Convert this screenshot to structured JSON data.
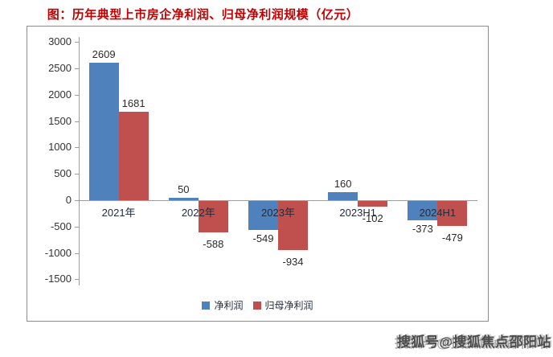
{
  "title": "图：历年典型上市房企净利润、归母净利润规模（亿元）",
  "watermark": "搜狐号@搜狐焦点邵阳站",
  "colors": {
    "title": "#c00000",
    "bar_blue": "#4f81bd",
    "bar_red": "#c0504d",
    "axis": "#9e9e9e",
    "text": "#2b2b2b",
    "border": "#8c8c8c",
    "watermark": "#4d4d4d"
  },
  "chart_data": {
    "type": "bar",
    "categories": [
      "2021年",
      "2022年",
      "2023年",
      "2023H1",
      "2024H1"
    ],
    "series": [
      {
        "name": "净利润",
        "color": "#4f81bd",
        "values": [
          2609,
          50,
          -549,
          160,
          -373
        ]
      },
      {
        "name": "归母净利润",
        "color": "#c0504d",
        "values": [
          1681,
          -588,
          -934,
          -102,
          -479
        ]
      }
    ],
    "data_labels": [
      [
        "2609",
        "50",
        "-549",
        "160",
        "-373"
      ],
      [
        "1681",
        "-588",
        "-934",
        "-102",
        "-479"
      ]
    ],
    "title": "图：历年典型上市房企净利润、归母净利润规模（亿元）",
    "xlabel": "",
    "ylabel": "",
    "ylim": [
      -1500,
      3000
    ],
    "ytick_step": 500,
    "yticks": [
      "3000",
      "2500",
      "2000",
      "1500",
      "1000",
      "500",
      "0",
      "-500",
      "-1000",
      "-1500"
    ],
    "legend_position": "bottom",
    "grid": false
  }
}
